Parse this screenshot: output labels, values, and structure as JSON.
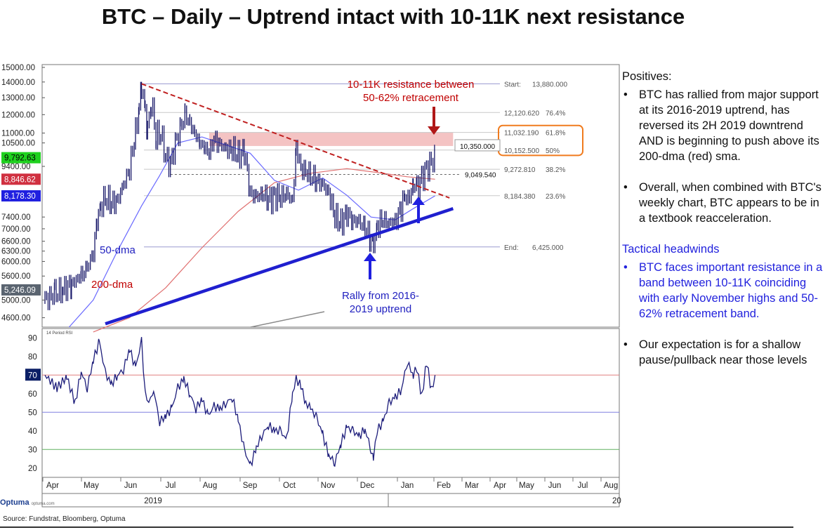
{
  "title": "BTC – Daily – Uptrend intact with 10-11K next resistance",
  "source": "Source: Fundstrat, Bloomberg, Optuma",
  "logo": {
    "text": "Optuma",
    "site": "optuma.com"
  },
  "chart_data": [
    {
      "type": "line",
      "series_kind": "candlestick",
      "yscale": "log",
      "ylim": [
        4400,
        15200
      ],
      "yticks": [
        {
          "v": 15000,
          "label": "15000.00"
        },
        {
          "v": 14000,
          "label": "14000.00"
        },
        {
          "v": 13000,
          "label": "13000.00"
        },
        {
          "v": 12000,
          "label": "12000.00"
        },
        {
          "v": 11000,
          "label": "11000.00"
        },
        {
          "v": 10500,
          "label": "10500.00"
        },
        {
          "v": 9400,
          "label": "9400.00"
        },
        {
          "v": 7400,
          "label": "7400.00"
        },
        {
          "v": 7000,
          "label": "7000.00"
        },
        {
          "v": 6600,
          "label": "6600.00"
        },
        {
          "v": 6300,
          "label": "6300.00"
        },
        {
          "v": 6000,
          "label": "6000.00"
        },
        {
          "v": 5600,
          "label": "5600.00"
        },
        {
          "v": 5000,
          "label": "5000.00"
        },
        {
          "v": 4600,
          "label": "4600.00"
        }
      ],
      "price_badges": [
        {
          "v": 9792.63,
          "label": "9,792.63",
          "color": "#1fd11f",
          "text_color": "#000000"
        },
        {
          "v": 8846.62,
          "label": "8,846.62",
          "color": "#d03040",
          "text_color": "#ffffff"
        },
        {
          "v": 8178.3,
          "label": "8,178.30",
          "color": "#2020e0",
          "text_color": "#ffffff"
        },
        {
          "v": 5246.09,
          "label": "5,246.09",
          "color": "#5a6470",
          "text_color": "#ffffff"
        }
      ],
      "fib_levels": [
        {
          "v": 13880,
          "label": "Start:",
          "value": "13,880.000"
        },
        {
          "v": 12120.62,
          "label": "12,120.620",
          "pct": "76.4%"
        },
        {
          "v": 11032.19,
          "label": "11,032.190",
          "pct": "61.8%"
        },
        {
          "v": 10152.5,
          "label": "10,152.500",
          "pct": "50%"
        },
        {
          "v": 9272.81,
          "label": "9,272.810",
          "pct": "38.2%"
        },
        {
          "v": 8184.38,
          "label": "8,184.380",
          "pct": "23.6%"
        },
        {
          "v": 6425,
          "label": "End:",
          "value": "6,425.000"
        }
      ],
      "level_labels": [
        {
          "v": 10350,
          "label": "10,350.000"
        },
        {
          "v": 9049.54,
          "label": "9,049.540"
        }
      ],
      "x_month_labels": [
        "Apr",
        "May",
        "Jun",
        "Jul",
        "Aug",
        "Sep",
        "Oct",
        "Nov",
        "Dec",
        "Jan",
        "Feb",
        "Mar",
        "Apr",
        "May",
        "Jun",
        "Jul",
        "Aug"
      ],
      "x_year_labels": [
        "2019",
        "20"
      ],
      "closes": [
        {
          "d": 0,
          "v": 5000
        },
        {
          "d": 8,
          "v": 5150
        },
        {
          "d": 15,
          "v": 5250
        },
        {
          "d": 22,
          "v": 5400
        },
        {
          "d": 30,
          "v": 5600
        },
        {
          "d": 35,
          "v": 5800
        },
        {
          "d": 40,
          "v": 6300
        },
        {
          "d": 43,
          "v": 7200
        },
        {
          "d": 46,
          "v": 7800
        },
        {
          "d": 50,
          "v": 8100
        },
        {
          "d": 55,
          "v": 7900
        },
        {
          "d": 60,
          "v": 8000
        },
        {
          "d": 65,
          "v": 8600
        },
        {
          "d": 70,
          "v": 9300
        },
        {
          "d": 75,
          "v": 11000
        },
        {
          "d": 78,
          "v": 12500
        },
        {
          "d": 80,
          "v": 13880
        },
        {
          "d": 83,
          "v": 12000
        },
        {
          "d": 85,
          "v": 11200
        },
        {
          "d": 88,
          "v": 12800
        },
        {
          "d": 92,
          "v": 10800
        },
        {
          "d": 96,
          "v": 11000
        },
        {
          "d": 100,
          "v": 9800
        },
        {
          "d": 104,
          "v": 9500
        },
        {
          "d": 108,
          "v": 10500
        },
        {
          "d": 112,
          "v": 11200
        },
        {
          "d": 116,
          "v": 12000
        },
        {
          "d": 120,
          "v": 11500
        },
        {
          "d": 124,
          "v": 11000
        },
        {
          "d": 128,
          "v": 10500
        },
        {
          "d": 132,
          "v": 10300
        },
        {
          "d": 136,
          "v": 10000
        },
        {
          "d": 140,
          "v": 10700
        },
        {
          "d": 145,
          "v": 10400
        },
        {
          "d": 150,
          "v": 10200
        },
        {
          "d": 155,
          "v": 10200
        },
        {
          "d": 160,
          "v": 9900
        },
        {
          "d": 165,
          "v": 10100
        },
        {
          "d": 170,
          "v": 8300
        },
        {
          "d": 175,
          "v": 8100
        },
        {
          "d": 180,
          "v": 8300
        },
        {
          "d": 185,
          "v": 8000
        },
        {
          "d": 190,
          "v": 8200
        },
        {
          "d": 195,
          "v": 8100
        },
        {
          "d": 200,
          "v": 8300
        },
        {
          "d": 205,
          "v": 7900
        },
        {
          "d": 208,
          "v": 10300
        },
        {
          "d": 212,
          "v": 9300
        },
        {
          "d": 216,
          "v": 9200
        },
        {
          "d": 220,
          "v": 9000
        },
        {
          "d": 225,
          "v": 8800
        },
        {
          "d": 230,
          "v": 8600
        },
        {
          "d": 235,
          "v": 8300
        },
        {
          "d": 240,
          "v": 7400
        },
        {
          "d": 245,
          "v": 7200
        },
        {
          "d": 250,
          "v": 7500
        },
        {
          "d": 255,
          "v": 7300
        },
        {
          "d": 260,
          "v": 7200
        },
        {
          "d": 265,
          "v": 7100
        },
        {
          "d": 270,
          "v": 6600
        },
        {
          "d": 272,
          "v": 6425
        },
        {
          "d": 275,
          "v": 7100
        },
        {
          "d": 280,
          "v": 7300
        },
        {
          "d": 285,
          "v": 7200
        },
        {
          "d": 290,
          "v": 7200
        },
        {
          "d": 295,
          "v": 7800
        },
        {
          "d": 298,
          "v": 8100
        },
        {
          "d": 302,
          "v": 8100
        },
        {
          "d": 305,
          "v": 8700
        },
        {
          "d": 308,
          "v": 8400
        },
        {
          "d": 312,
          "v": 8900
        },
        {
          "d": 316,
          "v": 9300
        },
        {
          "d": 320,
          "v": 9600
        },
        {
          "d": 323,
          "v": 9792.63
        }
      ],
      "sma50": [
        {
          "d": 20,
          "v": 4400
        },
        {
          "d": 40,
          "v": 5000
        },
        {
          "d": 60,
          "v": 6300
        },
        {
          "d": 80,
          "v": 7800
        },
        {
          "d": 95,
          "v": 9000
        },
        {
          "d": 110,
          "v": 10500
        },
        {
          "d": 130,
          "v": 10800
        },
        {
          "d": 150,
          "v": 10400
        },
        {
          "d": 170,
          "v": 10000
        },
        {
          "d": 190,
          "v": 8800
        },
        {
          "d": 210,
          "v": 8400
        },
        {
          "d": 230,
          "v": 8900
        },
        {
          "d": 250,
          "v": 8200
        },
        {
          "d": 270,
          "v": 7400
        },
        {
          "d": 290,
          "v": 7300
        },
        {
          "d": 305,
          "v": 7700
        },
        {
          "d": 323,
          "v": 8178.3
        }
      ],
      "sma200": [
        {
          "d": 40,
          "v": 4300
        },
        {
          "d": 70,
          "v": 4600
        },
        {
          "d": 100,
          "v": 5300
        },
        {
          "d": 130,
          "v": 6400
        },
        {
          "d": 160,
          "v": 7600
        },
        {
          "d": 190,
          "v": 8700
        },
        {
          "d": 220,
          "v": 9100
        },
        {
          "d": 250,
          "v": 9300
        },
        {
          "d": 280,
          "v": 9100
        },
        {
          "d": 300,
          "v": 8950
        },
        {
          "d": 323,
          "v": 8846.62
        }
      ],
      "trendlines": [
        {
          "name": "downtrend",
          "from": {
            "d": 80,
            "v": 13880
          },
          "to": {
            "d": 335,
            "v": 8100
          }
        },
        {
          "name": "uptrend",
          "from": {
            "d": 50,
            "v": 4470
          },
          "to": {
            "d": 338,
            "v": 7700
          }
        }
      ],
      "resistance_band": [
        10350,
        11032.19
      ],
      "annotations": [
        {
          "text": "10-11K resistance between",
          "color": "#c00000"
        },
        {
          "text": "50-62% retracement",
          "color": "#c00000"
        },
        {
          "text": "50-dma",
          "color": "#1f1fbf"
        },
        {
          "text": "200-dma",
          "color": "#c00000"
        },
        {
          "text": "Rally from 2016-",
          "color": "#1f1fbf"
        },
        {
          "text": "2019 uptrend",
          "color": "#1f1fbf"
        }
      ]
    },
    {
      "type": "line",
      "title": "14 Period RSI",
      "ylim": [
        15,
        95
      ],
      "yticks": [
        90,
        80,
        70,
        60,
        50,
        40,
        30,
        20
      ],
      "badge": {
        "v": 70,
        "label": "70"
      },
      "reference_lines": [
        {
          "v": 70,
          "color": "#e08080"
        },
        {
          "v": 50,
          "color": "#8080e0"
        },
        {
          "v": 30,
          "color": "#60b060"
        }
      ],
      "values": [
        {
          "d": 0,
          "v": 70
        },
        {
          "d": 10,
          "v": 63
        },
        {
          "d": 18,
          "v": 69
        },
        {
          "d": 25,
          "v": 55
        },
        {
          "d": 30,
          "v": 72
        },
        {
          "d": 35,
          "v": 63
        },
        {
          "d": 40,
          "v": 78
        },
        {
          "d": 45,
          "v": 88
        },
        {
          "d": 50,
          "v": 71
        },
        {
          "d": 55,
          "v": 65
        },
        {
          "d": 60,
          "v": 70
        },
        {
          "d": 65,
          "v": 73
        },
        {
          "d": 70,
          "v": 84
        },
        {
          "d": 75,
          "v": 74
        },
        {
          "d": 80,
          "v": 88
        },
        {
          "d": 83,
          "v": 60
        },
        {
          "d": 86,
          "v": 55
        },
        {
          "d": 90,
          "v": 62
        },
        {
          "d": 95,
          "v": 45
        },
        {
          "d": 100,
          "v": 48
        },
        {
          "d": 105,
          "v": 52
        },
        {
          "d": 110,
          "v": 63
        },
        {
          "d": 115,
          "v": 68
        },
        {
          "d": 120,
          "v": 60
        },
        {
          "d": 125,
          "v": 52
        },
        {
          "d": 130,
          "v": 57
        },
        {
          "d": 135,
          "v": 48
        },
        {
          "d": 140,
          "v": 53
        },
        {
          "d": 145,
          "v": 52
        },
        {
          "d": 150,
          "v": 55
        },
        {
          "d": 155,
          "v": 58
        },
        {
          "d": 160,
          "v": 46
        },
        {
          "d": 165,
          "v": 30
        },
        {
          "d": 170,
          "v": 21
        },
        {
          "d": 175,
          "v": 31
        },
        {
          "d": 180,
          "v": 38
        },
        {
          "d": 185,
          "v": 43
        },
        {
          "d": 190,
          "v": 40
        },
        {
          "d": 195,
          "v": 40
        },
        {
          "d": 200,
          "v": 35
        },
        {
          "d": 205,
          "v": 60
        },
        {
          "d": 208,
          "v": 68
        },
        {
          "d": 212,
          "v": 64
        },
        {
          "d": 216,
          "v": 55
        },
        {
          "d": 220,
          "v": 52
        },
        {
          "d": 225,
          "v": 47
        },
        {
          "d": 230,
          "v": 38
        },
        {
          "d": 235,
          "v": 27
        },
        {
          "d": 240,
          "v": 23
        },
        {
          "d": 245,
          "v": 33
        },
        {
          "d": 250,
          "v": 42
        },
        {
          "d": 255,
          "v": 40
        },
        {
          "d": 260,
          "v": 37
        },
        {
          "d": 265,
          "v": 41
        },
        {
          "d": 270,
          "v": 30
        },
        {
          "d": 272,
          "v": 25
        },
        {
          "d": 275,
          "v": 40
        },
        {
          "d": 280,
          "v": 45
        },
        {
          "d": 285,
          "v": 55
        },
        {
          "d": 290,
          "v": 58
        },
        {
          "d": 295,
          "v": 62
        },
        {
          "d": 300,
          "v": 77
        },
        {
          "d": 305,
          "v": 70
        },
        {
          "d": 308,
          "v": 74
        },
        {
          "d": 312,
          "v": 58
        },
        {
          "d": 316,
          "v": 77
        },
        {
          "d": 320,
          "v": 62
        },
        {
          "d": 323,
          "v": 70
        }
      ]
    }
  ],
  "panel": {
    "positives_heading": "Positives:",
    "positives": [
      "BTC has rallied from major support at its 2016-2019 uptrend, has reversed its 2H 2019 downtrend AND is beginning to push above its 200-dma (red) sma.",
      "Overall, when combined with BTC's weekly chart, BTC appears to be in a textbook reacceleration."
    ],
    "headwinds_heading": "Tactical headwinds",
    "headwinds": [
      "BTC faces important resistance in a band between 10-11K coinciding with early November highs and 50-62% retracement band.",
      "Our expectation is for a shallow pause/pullback near those levels"
    ]
  }
}
